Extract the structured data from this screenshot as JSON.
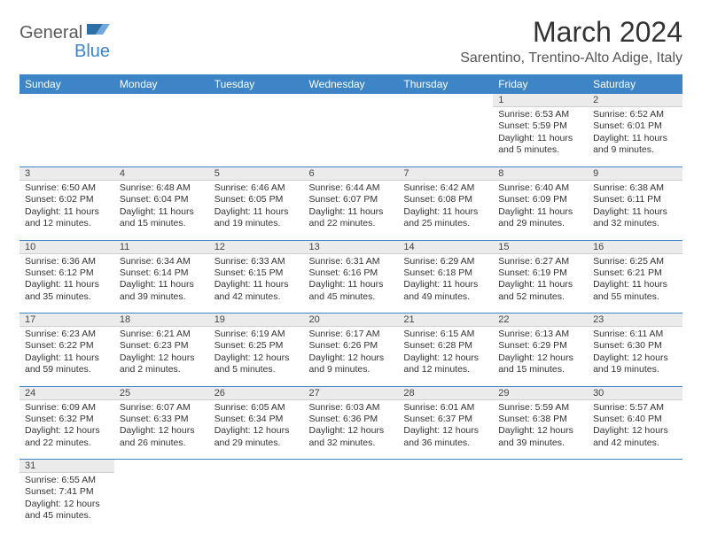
{
  "logo": {
    "part1": "General",
    "part2": "Blue"
  },
  "title": "March 2024",
  "location": "Sarentino, Trentino-Alto Adige, Italy",
  "colors": {
    "header_bg": "#3d85c6",
    "header_fg": "#ffffff",
    "daynum_bg": "#ebebeb",
    "row_divider": "#3d85c6",
    "text": "#333333"
  },
  "days_of_week": [
    "Sunday",
    "Monday",
    "Tuesday",
    "Wednesday",
    "Thursday",
    "Friday",
    "Saturday"
  ],
  "weeks": [
    [
      null,
      null,
      null,
      null,
      null,
      {
        "n": "1",
        "sunrise": "Sunrise: 6:53 AM",
        "sunset": "Sunset: 5:59 PM",
        "daylight": "Daylight: 11 hours and 5 minutes."
      },
      {
        "n": "2",
        "sunrise": "Sunrise: 6:52 AM",
        "sunset": "Sunset: 6:01 PM",
        "daylight": "Daylight: 11 hours and 9 minutes."
      }
    ],
    [
      {
        "n": "3",
        "sunrise": "Sunrise: 6:50 AM",
        "sunset": "Sunset: 6:02 PM",
        "daylight": "Daylight: 11 hours and 12 minutes."
      },
      {
        "n": "4",
        "sunrise": "Sunrise: 6:48 AM",
        "sunset": "Sunset: 6:04 PM",
        "daylight": "Daylight: 11 hours and 15 minutes."
      },
      {
        "n": "5",
        "sunrise": "Sunrise: 6:46 AM",
        "sunset": "Sunset: 6:05 PM",
        "daylight": "Daylight: 11 hours and 19 minutes."
      },
      {
        "n": "6",
        "sunrise": "Sunrise: 6:44 AM",
        "sunset": "Sunset: 6:07 PM",
        "daylight": "Daylight: 11 hours and 22 minutes."
      },
      {
        "n": "7",
        "sunrise": "Sunrise: 6:42 AM",
        "sunset": "Sunset: 6:08 PM",
        "daylight": "Daylight: 11 hours and 25 minutes."
      },
      {
        "n": "8",
        "sunrise": "Sunrise: 6:40 AM",
        "sunset": "Sunset: 6:09 PM",
        "daylight": "Daylight: 11 hours and 29 minutes."
      },
      {
        "n": "9",
        "sunrise": "Sunrise: 6:38 AM",
        "sunset": "Sunset: 6:11 PM",
        "daylight": "Daylight: 11 hours and 32 minutes."
      }
    ],
    [
      {
        "n": "10",
        "sunrise": "Sunrise: 6:36 AM",
        "sunset": "Sunset: 6:12 PM",
        "daylight": "Daylight: 11 hours and 35 minutes."
      },
      {
        "n": "11",
        "sunrise": "Sunrise: 6:34 AM",
        "sunset": "Sunset: 6:14 PM",
        "daylight": "Daylight: 11 hours and 39 minutes."
      },
      {
        "n": "12",
        "sunrise": "Sunrise: 6:33 AM",
        "sunset": "Sunset: 6:15 PM",
        "daylight": "Daylight: 11 hours and 42 minutes."
      },
      {
        "n": "13",
        "sunrise": "Sunrise: 6:31 AM",
        "sunset": "Sunset: 6:16 PM",
        "daylight": "Daylight: 11 hours and 45 minutes."
      },
      {
        "n": "14",
        "sunrise": "Sunrise: 6:29 AM",
        "sunset": "Sunset: 6:18 PM",
        "daylight": "Daylight: 11 hours and 49 minutes."
      },
      {
        "n": "15",
        "sunrise": "Sunrise: 6:27 AM",
        "sunset": "Sunset: 6:19 PM",
        "daylight": "Daylight: 11 hours and 52 minutes."
      },
      {
        "n": "16",
        "sunrise": "Sunrise: 6:25 AM",
        "sunset": "Sunset: 6:21 PM",
        "daylight": "Daylight: 11 hours and 55 minutes."
      }
    ],
    [
      {
        "n": "17",
        "sunrise": "Sunrise: 6:23 AM",
        "sunset": "Sunset: 6:22 PM",
        "daylight": "Daylight: 11 hours and 59 minutes."
      },
      {
        "n": "18",
        "sunrise": "Sunrise: 6:21 AM",
        "sunset": "Sunset: 6:23 PM",
        "daylight": "Daylight: 12 hours and 2 minutes."
      },
      {
        "n": "19",
        "sunrise": "Sunrise: 6:19 AM",
        "sunset": "Sunset: 6:25 PM",
        "daylight": "Daylight: 12 hours and 5 minutes."
      },
      {
        "n": "20",
        "sunrise": "Sunrise: 6:17 AM",
        "sunset": "Sunset: 6:26 PM",
        "daylight": "Daylight: 12 hours and 9 minutes."
      },
      {
        "n": "21",
        "sunrise": "Sunrise: 6:15 AM",
        "sunset": "Sunset: 6:28 PM",
        "daylight": "Daylight: 12 hours and 12 minutes."
      },
      {
        "n": "22",
        "sunrise": "Sunrise: 6:13 AM",
        "sunset": "Sunset: 6:29 PM",
        "daylight": "Daylight: 12 hours and 15 minutes."
      },
      {
        "n": "23",
        "sunrise": "Sunrise: 6:11 AM",
        "sunset": "Sunset: 6:30 PM",
        "daylight": "Daylight: 12 hours and 19 minutes."
      }
    ],
    [
      {
        "n": "24",
        "sunrise": "Sunrise: 6:09 AM",
        "sunset": "Sunset: 6:32 PM",
        "daylight": "Daylight: 12 hours and 22 minutes."
      },
      {
        "n": "25",
        "sunrise": "Sunrise: 6:07 AM",
        "sunset": "Sunset: 6:33 PM",
        "daylight": "Daylight: 12 hours and 26 minutes."
      },
      {
        "n": "26",
        "sunrise": "Sunrise: 6:05 AM",
        "sunset": "Sunset: 6:34 PM",
        "daylight": "Daylight: 12 hours and 29 minutes."
      },
      {
        "n": "27",
        "sunrise": "Sunrise: 6:03 AM",
        "sunset": "Sunset: 6:36 PM",
        "daylight": "Daylight: 12 hours and 32 minutes."
      },
      {
        "n": "28",
        "sunrise": "Sunrise: 6:01 AM",
        "sunset": "Sunset: 6:37 PM",
        "daylight": "Daylight: 12 hours and 36 minutes."
      },
      {
        "n": "29",
        "sunrise": "Sunrise: 5:59 AM",
        "sunset": "Sunset: 6:38 PM",
        "daylight": "Daylight: 12 hours and 39 minutes."
      },
      {
        "n": "30",
        "sunrise": "Sunrise: 5:57 AM",
        "sunset": "Sunset: 6:40 PM",
        "daylight": "Daylight: 12 hours and 42 minutes."
      }
    ],
    [
      {
        "n": "31",
        "sunrise": "Sunrise: 6:55 AM",
        "sunset": "Sunset: 7:41 PM",
        "daylight": "Daylight: 12 hours and 45 minutes."
      },
      null,
      null,
      null,
      null,
      null,
      null
    ]
  ]
}
